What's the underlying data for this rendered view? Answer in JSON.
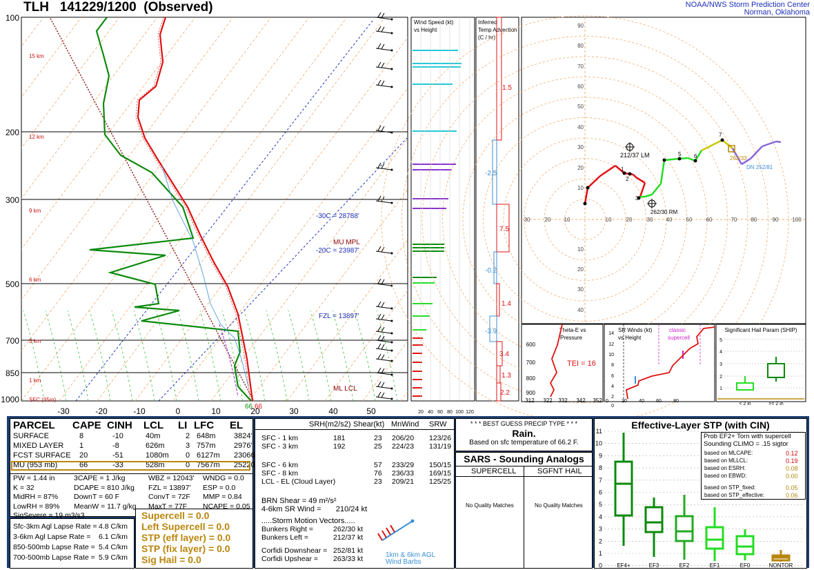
{
  "header": {
    "title": "TLH   141229/1200  (Observed)",
    "org_line1": "NOAA/NWS Storm Prediction Center",
    "org_line2": "Norman, Oklahoma"
  },
  "skewt": {
    "pressure_labels": [
      "100",
      "200",
      "300",
      "500",
      "700",
      "850",
      "1000"
    ],
    "height_labels": [
      "15 km",
      "12 km",
      "9 km",
      "6 km",
      "3 km",
      "1 km",
      "SFC (35m)"
    ],
    "temp_labels": [
      "-30",
      "-20",
      "-10",
      "0",
      "10",
      "20",
      "30",
      "40",
      "50"
    ],
    "levels": {
      "m30": "-30C = 28788'",
      "m20": "-20C = 23987'",
      "fzl": "FZL = 13897'",
      "mu_mpl": "MU MPL",
      "ml_lcl": "ML  LCL"
    },
    "sfc_labels": [
      "66",
      "66"
    ]
  },
  "wind_panel": {
    "title1": "Wind Speed (kt)",
    "title2": "vs Height",
    "axis_labels": [
      "20",
      "40",
      "60",
      "80",
      "100",
      "120"
    ]
  },
  "advect_panel": {
    "title1": "Inferred",
    "title2": "Temp Advection",
    "title3": "(C / hr)",
    "values": [
      "1.5",
      "-2.5",
      "7.5",
      "-0.2",
      "1.4",
      "-3.9",
      "3.4",
      "1.3",
      "2.2"
    ]
  },
  "hodo": {
    "x_labels": [
      "30",
      "20",
      "10",
      "10",
      "20",
      "30",
      "40",
      "50",
      "60",
      "70",
      "80",
      "90",
      "100"
    ],
    "y_labels": [
      "90",
      "80",
      "70",
      "60",
      "50",
      "40",
      "30",
      "20",
      "10",
      "10",
      "20",
      "30",
      "40",
      "50"
    ],
    "lm_label": "212/37 LM",
    "rm_label": "262/30 RM",
    "dn_label": "DN 252/81",
    "up_label": "263/33",
    "pts": [
      "1",
      "2",
      "3",
      "5",
      "6",
      "7"
    ]
  },
  "theta_panel": {
    "title1": "Theta-E vs",
    "title2": "Pressure",
    "tei": "TEI = 16",
    "p_labels": [
      "600",
      "700",
      "800",
      "900"
    ],
    "t_labels": [
      "312",
      "322",
      "332",
      "342",
      "352"
    ]
  },
  "srwind_panel": {
    "title1": "SR Winds (kt)",
    "title2": "vs Height",
    "classic1": "classic",
    "classic2": "supercell",
    "y_labels": [
      "14",
      "12",
      "10",
      "8",
      "6",
      "4",
      "2",
      "0"
    ],
    "x_labels": [
      "0",
      "20",
      "40",
      "60",
      "80"
    ]
  },
  "ship_panel": {
    "title": "Significant Hail Param (SHIP)",
    "y_labels": [
      "5",
      "4",
      "3",
      "2",
      "1"
    ],
    "x1": "< 2 in",
    "x2": ">= 2 in"
  },
  "parcel": {
    "headers": [
      "PARCEL",
      "CAPE",
      "CINH",
      "LCL",
      "LI",
      "LFC",
      "EL"
    ],
    "rows": [
      [
        "SURFACE",
        "8",
        "-10",
        "40m",
        "2",
        "648m",
        "3824'"
      ],
      [
        "MIXED LAYER",
        "1",
        "-8",
        "626m",
        "3",
        "757m",
        "2976'"
      ],
      [
        "FCST SURFACE",
        "20",
        "-51",
        "1080m",
        "0",
        "6127m",
        "23066'"
      ],
      [
        "MU   (953 mb)",
        "66",
        "-33",
        "528m",
        "0",
        "7567m",
        "25220'"
      ]
    ]
  },
  "indices": {
    "pw": "PW = 1.44 in",
    "3cape": "3CAPE = 1 J/kg",
    "wbz": "WBZ = 12043'",
    "wndg": "WNDG = 0.0",
    "k": "K = 32",
    "dcape": "DCAPE = 810 J/kg",
    "fzl": "FZL = 13897'",
    "esp": "ESP = 0.0",
    "midrh": "MidRH = 87%",
    "downt": "DownT = 60 F",
    "convt": "ConvT = 72F",
    "mmp": "MMP = 0.84",
    "lowrh": "LowRH = 89%",
    "meanw": "MeanW = 11.7 g/kg",
    "maxt": "MaxT = 77F",
    "ncape": "NCAPE = 0.05",
    "sigsevere": "SigSevere = 19 m3/s3"
  },
  "lapse": [
    [
      "Sfc-3km Agl Lapse Rate =",
      "4.8 C/km"
    ],
    [
      "3-6km Agl Lapse Rate =",
      "6.1 C/km"
    ],
    [
      "850-500mb Lapse Rate =",
      "5.4 C/km"
    ],
    [
      "700-500mb Lapse Rate =",
      "5.9 C/km"
    ]
  ],
  "composite": [
    "Supercell = 0.0",
    "Left Supercell = 0.0",
    "STP (eff layer) = 0.0",
    "STP (fix layer) = 0.0",
    "Sig Hail = 0.0"
  ],
  "kinematics": {
    "headers": [
      "SRH(m2/s2)",
      "Shear(kt)",
      "MnWind",
      "SRW"
    ],
    "rows": [
      [
        "SFC - 1 km",
        "181",
        "23",
        "206/20",
        "123/26"
      ],
      [
        "SFC - 3 km",
        "192",
        "25",
        "224/23",
        "131/19"
      ],
      [
        "SFC - 6 km",
        "",
        "57",
        "233/29",
        "150/15"
      ],
      [
        "SFC - 8 km",
        "",
        "76",
        "236/33",
        "169/15"
      ],
      [
        "LCL - EL (Cloud Layer)",
        "",
        "23",
        "209/21",
        "125/25"
      ]
    ],
    "brn": "BRN Shear =  49 m²/s²",
    "srwind46": "4-6km SR Wind =       210/24 kt",
    "smv": ".....Storm Motion Vectors.....",
    "motions": [
      [
        "Bunkers Right =",
        "262/30 kt"
      ],
      [
        "Bunkers Left =",
        "212/37 kt"
      ],
      [
        "Corfidi Downshear =",
        "252/81 kt"
      ],
      [
        "Corfidi Upshear =",
        "263/33 kt"
      ]
    ],
    "barb_note1": "1km & 6km AGL",
    "barb_note2": "Wind Barbs"
  },
  "precip": {
    "title": "* * * BEST GUESS PRECIP TYPE * * *",
    "value": "Rain.",
    "note": "Based on sfc temperature of 66.2 F."
  },
  "sars": {
    "title": "SARS - Sounding Analogs",
    "col1": "SUPERCELL",
    "col2": "SGFNT HAIL",
    "m1": "No Quality Matches",
    "m2": "No Quality Matches"
  },
  "stp": {
    "title": "Effective-Layer STP (with CIN)",
    "prob1": "Prob EF2+ Torn with supercell",
    "prob2": "Sounding CLIMO = .15 sigtor",
    "based": [
      [
        "based on MLCAPE:",
        "0.12"
      ],
      [
        "based on MLLCL:",
        "0.19"
      ],
      [
        "based on ESRH:",
        "0.08"
      ],
      [
        "based on EBWD:",
        "0.00"
      ],
      [
        "based on STP_fixed:",
        "0.05"
      ],
      [
        "based on STP_effective:",
        "0.06"
      ]
    ],
    "y_labels": [
      "11",
      "10",
      "9",
      "8",
      "7",
      "6",
      "5",
      "4",
      "3",
      "2",
      "1",
      "0"
    ],
    "cats": [
      "EF4+",
      "EF3",
      "EF2",
      "EF1",
      "EF0",
      "NONTOR"
    ]
  },
  "chart_data": {
    "type": "line",
    "title": "TLH   141229/1200  (Observed)",
    "xlabel": "",
    "ylabel": "",
    "ylim": [
      1000,
      100
    ],
    "xlim": [
      -30,
      50
    ],
    "series": [],
    "sfc_temp_f": 66.2
  },
  "colors": {
    "temp": "#e01010",
    "dewp": "#0b8a0b",
    "bg_navy": "#1b3d6e",
    "gold": "#b8860b",
    "hodo_red": "#e01010",
    "hodo_green": "#22dd22",
    "hodo_yellow": "#c8c800",
    "hodo_purple": "#8866dd"
  }
}
